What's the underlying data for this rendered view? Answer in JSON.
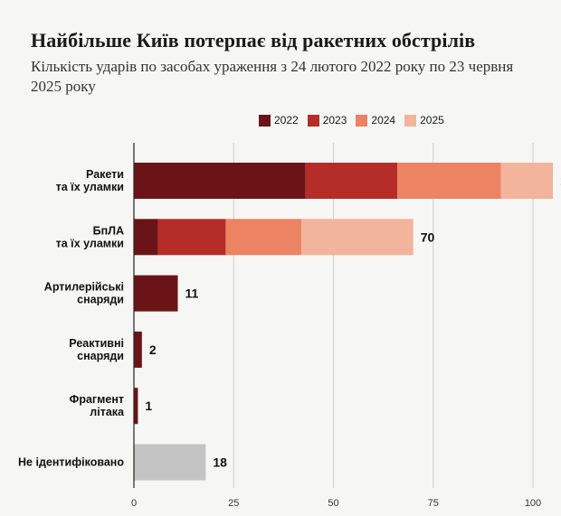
{
  "title": "Найбільше Київ потерпає від ракетних обстрілів",
  "subtitle": "Кількість ударів по засобах ураження з 24 лютого 2022 року по 23 червня 2025 року",
  "chart_data": {
    "type": "bar",
    "orientation": "horizontal",
    "stacked": true,
    "categories": [
      [
        "Ракети",
        "та їх уламки"
      ],
      [
        "БпЛА",
        "та їх уламки"
      ],
      [
        "Артилерійські",
        "снаряди"
      ],
      [
        "Реактивні",
        "снаряди"
      ],
      [
        "Фрагмент",
        "літака"
      ],
      [
        "Не ідентифіковано"
      ]
    ],
    "series": [
      {
        "name": "2022",
        "color": "#6b1417",
        "values": [
          43,
          6,
          11,
          2,
          1,
          0
        ]
      },
      {
        "name": "2023",
        "color": "#b52d29",
        "values": [
          23,
          17,
          0,
          0,
          0,
          0
        ]
      },
      {
        "name": "2024",
        "color": "#ec8363",
        "values": [
          26,
          19,
          0,
          0,
          0,
          0
        ]
      },
      {
        "name": "2025",
        "color": "#f2b49a",
        "values": [
          13,
          28,
          0,
          0,
          0,
          0
        ]
      },
      {
        "name": "",
        "color": "#c4c4c4",
        "values": [
          0,
          0,
          0,
          0,
          0,
          18
        ]
      }
    ],
    "totals": [
      105,
      70,
      11,
      2,
      1,
      18
    ],
    "xticks": [
      0,
      25,
      50,
      75,
      100
    ],
    "xlim": [
      0,
      105
    ],
    "grid": true,
    "legend_position": "top"
  }
}
